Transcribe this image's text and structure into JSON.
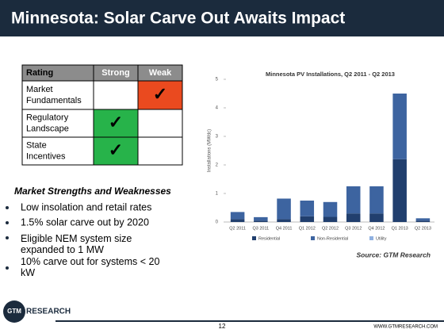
{
  "header": {
    "title": "Minnesota: Solar Carve Out  Awaits Impact"
  },
  "table": {
    "headers": [
      "Rating",
      "Strong",
      "Weak"
    ],
    "rows": [
      [
        "Market Fundamentals",
        "",
        "✓"
      ],
      [
        "Regulatory Landscape",
        "✓",
        ""
      ],
      [
        "State Incentives",
        "✓",
        ""
      ]
    ]
  },
  "section": {
    "heading": "Market Strengths and Weaknesses",
    "bullets": [
      "Low insolation and retail rates",
      "1.5% solar carve out by 2020",
      "Eligible NEM system size expanded to 1 MW",
      "10% carve out for systems < 20 kW"
    ]
  },
  "chart_data": {
    "type": "stacked_bar",
    "title": "Minnesota PV Installations, Q2 2011 - Q2 2013",
    "y_label": "Installations (MWdc)",
    "categories": [
      "Q2 2011",
      "Q3 2011",
      "Q4 2011",
      "Q1 2012",
      "Q2 2012",
      "Q3 2012",
      "Q4 2012",
      "Q1 2013",
      "Q2 2013"
    ],
    "series": [
      {
        "name": "Residential",
        "color": "#213f6e",
        "values": [
          0.1,
          0.05,
          0.1,
          0.2,
          0.18,
          0.3,
          0.3,
          2.2,
          0.05
        ]
      },
      {
        "name": "Non-Residential",
        "color": "#3d64a0",
        "values": [
          0.25,
          0.12,
          0.72,
          0.55,
          0.52,
          0.95,
          0.95,
          2.3,
          0.08
        ]
      },
      {
        "name": "Utility",
        "color": "#8fb0e0",
        "values": [
          0,
          0,
          0,
          0,
          0,
          0,
          0,
          0,
          0
        ]
      }
    ],
    "ylim": [
      0,
      5
    ],
    "yticks": [
      0,
      1,
      2,
      3,
      4,
      5
    ],
    "source": "Source: GTM Research"
  },
  "footer": {
    "logo": "RESEARCH",
    "logo_mark": "GTM",
    "page": "12",
    "url": "WWW.GTMRESEARCH.COM"
  }
}
